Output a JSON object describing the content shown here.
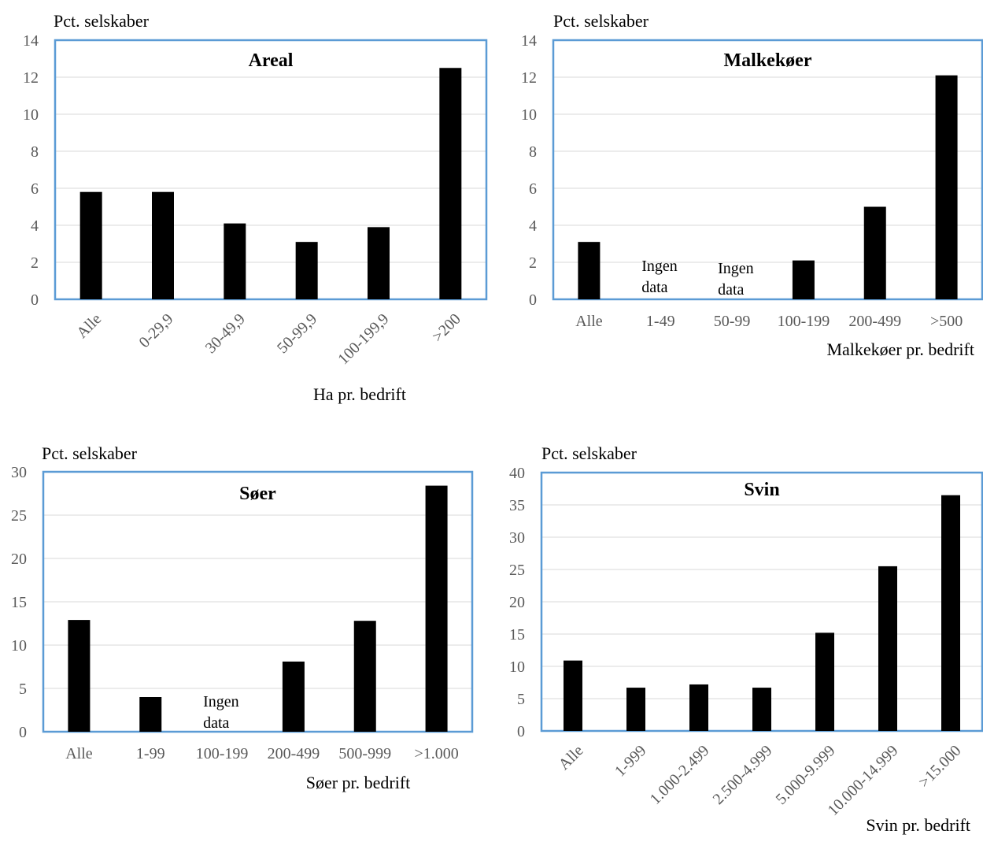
{
  "chart_data": [
    {
      "type": "bar",
      "title": "Areal",
      "ylabel": "Pct. selskaber",
      "xlabel": "Ha pr. bedrift",
      "ylim": [
        0,
        14
      ],
      "yticks": [
        0,
        2,
        4,
        6,
        8,
        10,
        12,
        14
      ],
      "categories": [
        "Alle",
        "0-29,9",
        "30-49,9",
        "50-99,9",
        "100-199,9",
        ">200"
      ],
      "values": [
        5.8,
        5.8,
        4.1,
        3.1,
        3.9,
        12.5
      ],
      "annotations": [],
      "grid": true,
      "legend": "none"
    },
    {
      "type": "bar",
      "title": "Malkekøer",
      "ylabel": "Pct. selskaber",
      "xlabel": "Malkekøer pr. bedrift",
      "ylim": [
        0,
        14
      ],
      "yticks": [
        0,
        2,
        4,
        6,
        8,
        10,
        12,
        14
      ],
      "categories": [
        "Alle",
        "1-49",
        "50-99",
        "100-199",
        "200-499",
        ">500"
      ],
      "values": [
        3.1,
        null,
        null,
        2.1,
        5.0,
        12.1
      ],
      "annotations": [
        {
          "category": "1-49",
          "lines": [
            "Ingen",
            "data"
          ]
        },
        {
          "category": "50-99",
          "lines": [
            "Ingen",
            "data"
          ]
        }
      ],
      "grid": true,
      "legend": "none"
    },
    {
      "type": "bar",
      "title": "Søer",
      "ylabel": "Pct. selskaber",
      "xlabel": "Søer pr. bedrift",
      "ylim": [
        0,
        30
      ],
      "yticks": [
        0,
        5,
        10,
        15,
        20,
        25,
        30
      ],
      "categories": [
        "Alle",
        "1-99",
        "100-199",
        "200-499",
        "500-999",
        ">1.000"
      ],
      "values": [
        12.9,
        4.0,
        null,
        8.1,
        12.8,
        28.4
      ],
      "annotations": [
        {
          "category": "100-199",
          "lines": [
            "Ingen",
            "data"
          ]
        }
      ],
      "grid": true,
      "legend": "none"
    },
    {
      "type": "bar",
      "title": "Svin",
      "ylabel": "Pct. selskaber",
      "xlabel": "Svin pr. bedrift",
      "ylim": [
        0,
        40
      ],
      "yticks": [
        0,
        5,
        10,
        15,
        20,
        25,
        30,
        35,
        40
      ],
      "categories": [
        "Alle",
        "1-999",
        "1.000-2.499",
        "2.500-4.999",
        "5.000-9.999",
        "10.000-14.999",
        ">15.000"
      ],
      "values": [
        10.9,
        6.7,
        7.2,
        6.7,
        15.2,
        25.5,
        36.5
      ],
      "annotations": [],
      "grid": true,
      "legend": "none"
    }
  ]
}
